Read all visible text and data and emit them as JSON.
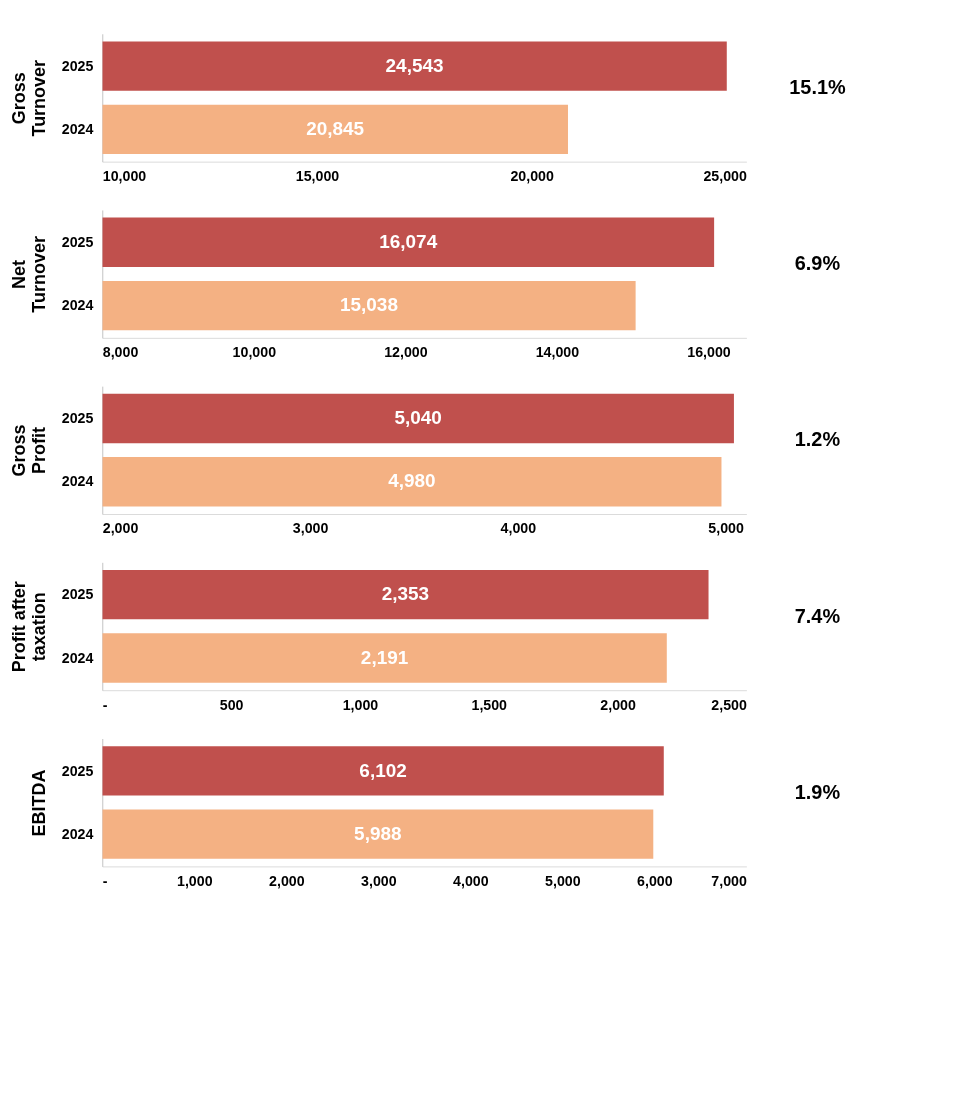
{
  "chart_data": [
    {
      "type": "bar",
      "orientation": "horizontal",
      "ylabel": "Gross Turnover",
      "categories": [
        "2025",
        "2024"
      ],
      "values": [
        24543,
        20845
      ],
      "value_labels": [
        "24,543",
        "20,845"
      ],
      "colors": [
        "#c0504d",
        "#f4b183"
      ],
      "xlim": [
        10000,
        25000
      ],
      "xticks": [
        {
          "value": 10000,
          "label": "10,000"
        },
        {
          "value": 15000,
          "label": "15,000"
        },
        {
          "value": 20000,
          "label": "20,000"
        },
        {
          "value": 25000,
          "label": "25,000"
        }
      ],
      "annotations": [
        "15.1%"
      ]
    },
    {
      "type": "bar",
      "orientation": "horizontal",
      "ylabel": "Net Turnover",
      "categories": [
        "2025",
        "2024"
      ],
      "values": [
        16074,
        15038
      ],
      "value_labels": [
        "16,074",
        "15,038"
      ],
      "colors": [
        "#c0504d",
        "#f4b183"
      ],
      "xlim": [
        8000,
        16500
      ],
      "xticks": [
        {
          "value": 8000,
          "label": "8,000"
        },
        {
          "value": 10000,
          "label": "10,000"
        },
        {
          "value": 12000,
          "label": "12,000"
        },
        {
          "value": 14000,
          "label": "14,000"
        },
        {
          "value": 16000,
          "label": "16,000"
        }
      ],
      "annotations": [
        "6.9%"
      ]
    },
    {
      "type": "bar",
      "orientation": "horizontal",
      "ylabel": "Gross Profit",
      "categories": [
        "2025",
        "2024"
      ],
      "values": [
        5040,
        4980
      ],
      "value_labels": [
        "5,040",
        "4,980"
      ],
      "colors": [
        "#c0504d",
        "#f4b183"
      ],
      "xlim": [
        2000,
        5100
      ],
      "xticks": [
        {
          "value": 2000,
          "label": "2,000"
        },
        {
          "value": 3000,
          "label": "3,000"
        },
        {
          "value": 4000,
          "label": "4,000"
        },
        {
          "value": 5000,
          "label": "5,000"
        }
      ],
      "annotations": [
        "1.2%"
      ]
    },
    {
      "type": "bar",
      "orientation": "horizontal",
      "ylabel": "Profit after taxation",
      "categories": [
        "2025",
        "2024"
      ],
      "values": [
        2353,
        2191
      ],
      "value_labels": [
        "2,353",
        "2,191"
      ],
      "colors": [
        "#c0504d",
        "#f4b183"
      ],
      "xlim": [
        0,
        2500
      ],
      "xticks": [
        {
          "value": 0,
          "label": "-"
        },
        500,
        {
          "value": 1000,
          "label": "1,000"
        },
        {
          "value": 1500,
          "label": "1,500"
        },
        {
          "value": 2000,
          "label": "2,000"
        },
        {
          "value": 2500,
          "label": "2,500"
        }
      ],
      "annotations": [
        "7.4%"
      ]
    },
    {
      "type": "bar",
      "orientation": "horizontal",
      "ylabel": "EBITDA",
      "categories": [
        "2025",
        "2024"
      ],
      "values": [
        6102,
        5988
      ],
      "value_labels": [
        "6,102",
        "5,988"
      ],
      "colors": [
        "#c0504d",
        "#f4b183"
      ],
      "xlim": [
        0,
        7000
      ],
      "xticks": [
        {
          "value": 0,
          "label": "-"
        },
        {
          "value": 1000,
          "label": "1,000"
        },
        {
          "value": 2000,
          "label": "2,000"
        },
        {
          "value": 3000,
          "label": "3,000"
        },
        {
          "value": 4000,
          "label": "4,000"
        },
        {
          "value": 5000,
          "label": "5,000"
        },
        {
          "value": 6000,
          "label": "6,000"
        },
        {
          "value": 7000,
          "label": "7,000"
        }
      ],
      "annotations": [
        "1.9%"
      ]
    }
  ]
}
